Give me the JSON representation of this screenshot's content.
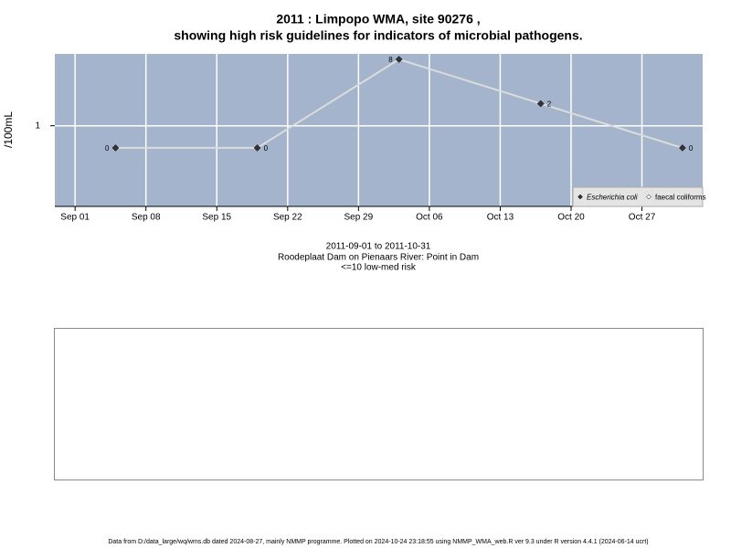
{
  "chart_data": {
    "type": "line",
    "title": "2011 : Limpopo WMA, site 90276 ,",
    "title_line2": "showing high risk guidelines for indicators of microbial pathogens.",
    "y_label": "/100mL",
    "subtitle_lines": [
      "2011-09-01 to 2011-10-31",
      "Roodeplaat Dam on Pienaars River: Point in Dam",
      "<=10 low-med risk"
    ],
    "x": [
      "Sep 05",
      "Sep 19",
      "Oct 03",
      "Oct 17",
      "Oct 31"
    ],
    "series": [
      {
        "name": "Escherichia coli",
        "color": "#333333",
        "values": [
          0,
          0,
          8,
          2,
          0
        ]
      },
      {
        "name": "faecal coliforms",
        "color": "#ffffff",
        "values": [
          null,
          null,
          null,
          null,
          null
        ]
      }
    ],
    "xlim": [
      "Aug 30",
      "Nov 02"
    ],
    "xticks": [
      "Sep 01",
      "Sep 08",
      "Sep 15",
      "Sep 22",
      "Sep 29",
      "Oct 06",
      "Oct 13",
      "Oct 20",
      "Oct 27"
    ],
    "ylim": [
      0.08,
      9.5
    ],
    "yticks": [
      1
    ],
    "log_y": true,
    "grid": true,
    "legend": "bottom-right",
    "footer": "Data from D:/data_large/wq/wms.db dated 2024-08-27, mainly NMMP programme. Plotted on 2024-10-24 23:18:55 using NMMP_WMA_web.R ver 9.3 under R version 4.4.1 (2024-06-14 ucrt)"
  }
}
